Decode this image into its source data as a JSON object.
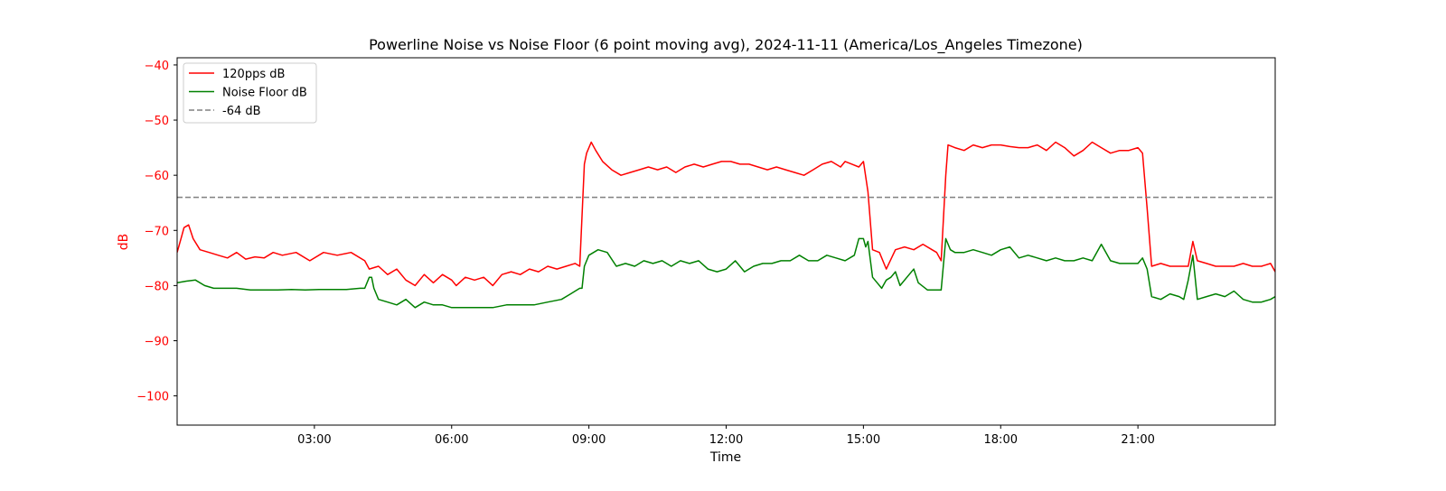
{
  "chart_data": {
    "type": "line",
    "title": "Powerline Noise vs Noise Floor (6 point moving avg), 2024-11-11 (America/Los_Angeles Timezone)",
    "xlabel": "Time",
    "ylabel": "dB",
    "x_unit": "hours",
    "xlim": [
      0,
      24
    ],
    "ylim": [
      -105.3,
      -38.7
    ],
    "x_ticks": [
      3,
      6,
      9,
      12,
      15,
      18,
      21
    ],
    "x_tick_labels": [
      "03:00",
      "06:00",
      "09:00",
      "12:00",
      "15:00",
      "18:00",
      "21:00"
    ],
    "y_ticks": [
      -40,
      -50,
      -60,
      -70,
      -80,
      -90,
      -100
    ],
    "y_tick_labels": [
      "−40",
      "−50",
      "−60",
      "−70",
      "−80",
      "−90",
      "−100"
    ],
    "ylabel_color": "#ff0000",
    "grid": false,
    "legend_position": "upper-left",
    "series": [
      {
        "name": "120pps dB",
        "color": "#ff0000",
        "style": "solid",
        "x": [
          0.0,
          0.1,
          0.15,
          0.25,
          0.35,
          0.5,
          0.7,
          0.9,
          1.1,
          1.3,
          1.5,
          1.7,
          1.9,
          2.1,
          2.3,
          2.6,
          2.9,
          3.2,
          3.5,
          3.8,
          4.1,
          4.2,
          4.4,
          4.6,
          4.8,
          5.0,
          5.2,
          5.4,
          5.6,
          5.8,
          6.0,
          6.1,
          6.3,
          6.5,
          6.7,
          6.9,
          7.1,
          7.3,
          7.5,
          7.7,
          7.9,
          8.1,
          8.3,
          8.5,
          8.7,
          8.8,
          8.9,
          8.95,
          9.05,
          9.15,
          9.3,
          9.5,
          9.7,
          9.9,
          10.1,
          10.3,
          10.5,
          10.7,
          10.9,
          11.1,
          11.3,
          11.5,
          11.7,
          11.9,
          12.1,
          12.3,
          12.5,
          12.7,
          12.9,
          13.1,
          13.3,
          13.5,
          13.7,
          13.9,
          14.1,
          14.3,
          14.5,
          14.6,
          14.75,
          14.9,
          15.0,
          15.1,
          15.2,
          15.35,
          15.5,
          15.7,
          15.9,
          16.1,
          16.3,
          16.5,
          16.6,
          16.7,
          16.8,
          16.85,
          17.0,
          17.2,
          17.4,
          17.6,
          17.8,
          18.0,
          18.2,
          18.4,
          18.6,
          18.8,
          19.0,
          19.2,
          19.4,
          19.6,
          19.8,
          20.0,
          20.2,
          20.4,
          20.6,
          20.8,
          21.0,
          21.1,
          21.2,
          21.3,
          21.5,
          21.7,
          21.9,
          22.1,
          22.2,
          22.3,
          22.5,
          22.7,
          22.9,
          23.1,
          23.3,
          23.5,
          23.7,
          23.9,
          24.0
        ],
        "values": [
          -74.0,
          -71.0,
          -69.5,
          -69.0,
          -71.5,
          -73.5,
          -74.0,
          -74.5,
          -75.0,
          -74.0,
          -75.2,
          -74.8,
          -75.0,
          -74.0,
          -74.5,
          -74.0,
          -75.5,
          -74.0,
          -74.5,
          -74.0,
          -75.5,
          -77.0,
          -76.5,
          -78.0,
          -77.0,
          -79.0,
          -80.0,
          -78.0,
          -79.5,
          -78.0,
          -79.0,
          -80.0,
          -78.5,
          -79.0,
          -78.5,
          -80.0,
          -78.0,
          -77.5,
          -78.0,
          -77.0,
          -77.5,
          -76.5,
          -77.0,
          -76.5,
          -76.0,
          -76.5,
          -58.0,
          -56.0,
          -54.0,
          -55.5,
          -57.5,
          -59.0,
          -60.0,
          -59.5,
          -59.0,
          -58.5,
          -59.0,
          -58.5,
          -59.5,
          -58.5,
          -58.0,
          -58.5,
          -58.0,
          -57.5,
          -57.5,
          -58.0,
          -58.0,
          -58.5,
          -59.0,
          -58.5,
          -59.0,
          -59.5,
          -60.0,
          -59.0,
          -58.0,
          -57.5,
          -58.5,
          -57.5,
          -58.0,
          -58.5,
          -57.5,
          -63.0,
          -73.5,
          -74.0,
          -77.0,
          -73.5,
          -73.0,
          -73.5,
          -72.5,
          -73.5,
          -74.0,
          -75.5,
          -60.0,
          -54.5,
          -55.0,
          -55.5,
          -54.5,
          -55.0,
          -54.5,
          -54.5,
          -54.8,
          -55.0,
          -55.0,
          -54.5,
          -55.5,
          -54.0,
          -55.0,
          -56.5,
          -55.5,
          -54.0,
          -55.0,
          -56.0,
          -55.5,
          -55.5,
          -55.0,
          -56.0,
          -66.0,
          -76.5,
          -76.0,
          -76.5,
          -76.5,
          -76.5,
          -72.0,
          -75.5,
          -76.0,
          -76.5,
          -76.5,
          -76.5,
          -76.0,
          -76.5,
          -76.5,
          -76.0,
          -77.5
        ]
      },
      {
        "name": "Noise Floor dB",
        "color": "#008000",
        "style": "solid",
        "x": [
          0.0,
          0.2,
          0.4,
          0.6,
          0.8,
          1.0,
          1.3,
          1.6,
          1.9,
          2.2,
          2.5,
          2.8,
          3.1,
          3.4,
          3.7,
          4.0,
          4.1,
          4.2,
          4.25,
          4.3,
          4.4,
          4.6,
          4.8,
          5.0,
          5.2,
          5.4,
          5.6,
          5.8,
          6.0,
          6.3,
          6.6,
          6.9,
          7.2,
          7.5,
          7.8,
          8.1,
          8.4,
          8.6,
          8.8,
          8.85,
          8.9,
          9.0,
          9.2,
          9.4,
          9.6,
          9.8,
          10.0,
          10.2,
          10.4,
          10.6,
          10.8,
          11.0,
          11.2,
          11.4,
          11.6,
          11.8,
          12.0,
          12.2,
          12.4,
          12.6,
          12.8,
          13.0,
          13.2,
          13.4,
          13.6,
          13.8,
          14.0,
          14.2,
          14.4,
          14.6,
          14.8,
          14.9,
          15.0,
          15.05,
          15.1,
          15.2,
          15.3,
          15.4,
          15.5,
          15.6,
          15.7,
          15.8,
          16.0,
          16.1,
          16.2,
          16.4,
          16.6,
          16.7,
          16.8,
          16.9,
          17.0,
          17.2,
          17.4,
          17.6,
          17.8,
          18.0,
          18.2,
          18.4,
          18.6,
          18.8,
          19.0,
          19.2,
          19.4,
          19.6,
          19.8,
          20.0,
          20.2,
          20.4,
          20.6,
          20.8,
          21.0,
          21.1,
          21.2,
          21.3,
          21.5,
          21.7,
          21.9,
          22.0,
          22.1,
          22.2,
          22.3,
          22.5,
          22.7,
          22.9,
          23.1,
          23.3,
          23.5,
          23.7,
          23.9,
          24.0
        ],
        "values": [
          -79.5,
          -79.2,
          -79.0,
          -80.0,
          -80.5,
          -80.5,
          -80.5,
          -80.8,
          -80.8,
          -80.8,
          -80.7,
          -80.8,
          -80.7,
          -80.7,
          -80.7,
          -80.5,
          -80.5,
          -78.5,
          -78.5,
          -80.5,
          -82.5,
          -83.0,
          -83.5,
          -82.5,
          -84.0,
          -83.0,
          -83.5,
          -83.5,
          -84.0,
          -84.0,
          -84.0,
          -84.0,
          -83.5,
          -83.5,
          -83.5,
          -83.0,
          -82.5,
          -81.5,
          -80.5,
          -80.5,
          -76.5,
          -74.5,
          -73.5,
          -74.0,
          -76.5,
          -76.0,
          -76.5,
          -75.5,
          -76.0,
          -75.5,
          -76.5,
          -75.5,
          -76.0,
          -75.5,
          -77.0,
          -77.5,
          -77.0,
          -75.5,
          -77.5,
          -76.5,
          -76.0,
          -76.0,
          -75.5,
          -75.5,
          -74.5,
          -75.5,
          -75.5,
          -74.5,
          -75.0,
          -75.5,
          -74.5,
          -71.5,
          -71.5,
          -73.0,
          -72.0,
          -78.5,
          -79.5,
          -80.5,
          -79.0,
          -78.5,
          -77.5,
          -80.0,
          -78.0,
          -77.0,
          -79.5,
          -80.8,
          -80.8,
          -80.8,
          -71.5,
          -73.5,
          -74.0,
          -74.0,
          -73.5,
          -74.0,
          -74.5,
          -73.5,
          -73.0,
          -75.0,
          -74.5,
          -75.0,
          -75.5,
          -75.0,
          -75.5,
          -75.5,
          -75.0,
          -75.5,
          -72.5,
          -75.5,
          -76.0,
          -76.0,
          -76.0,
          -75.0,
          -77.0,
          -82.0,
          -82.5,
          -81.5,
          -82.0,
          -82.5,
          -79.0,
          -74.5,
          -82.5,
          -82.0,
          -81.5,
          -82.0,
          -81.0,
          -82.5,
          -83.0,
          -83.0,
          -82.5,
          -82.0
        ]
      },
      {
        "name": "-64 dB",
        "color": "#808080",
        "style": "dashed",
        "x": [
          0,
          24
        ],
        "values": [
          -64,
          -64
        ]
      }
    ]
  }
}
